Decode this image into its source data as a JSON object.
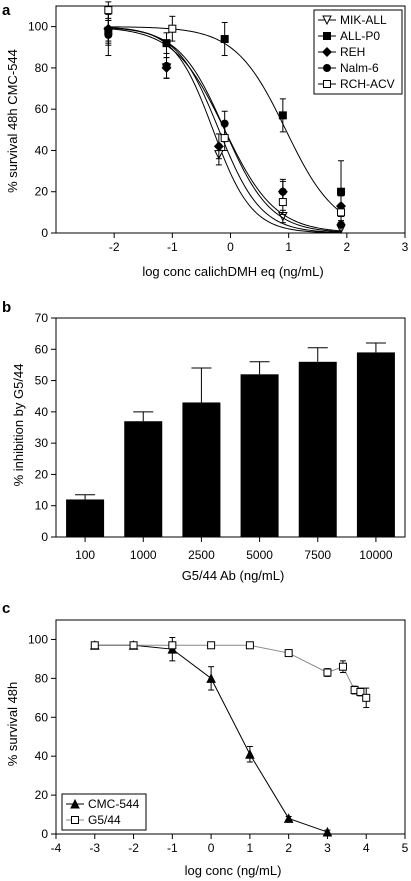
{
  "chart_data": [
    {
      "panel": "a",
      "type": "line",
      "title": "",
      "xlabel": "log conc calichDMH eq (ng/mL)",
      "ylabel": "% survival 48h CMC-544",
      "xlim": [
        -3,
        3
      ],
      "ylim": [
        0,
        110
      ],
      "xticks": [
        "-2",
        "-1",
        "0",
        "1",
        "2",
        "3"
      ],
      "yticks": [
        "0",
        "20",
        "40",
        "60",
        "80",
        "100"
      ],
      "legend_position": "top-right",
      "grid": false,
      "series": [
        {
          "name": "MIK-ALL",
          "marker": "triangle-down-open",
          "x": [
            -2.1,
            -1.1,
            -0.2,
            0.9,
            1.9
          ],
          "y": [
            97,
            80,
            38,
            8,
            2
          ],
          "err": [
            6,
            5,
            5,
            3,
            2
          ],
          "ic50": -0.3,
          "slope": 1.3
        },
        {
          "name": "ALL-P0",
          "marker": "square-filled",
          "x": [
            -2.1,
            -1.1,
            -0.1,
            0.9,
            1.9
          ],
          "y": [
            98,
            92,
            94,
            57,
            20
          ],
          "err": [
            5,
            5,
            8,
            8,
            15
          ],
          "ic50": 0.95,
          "slope": 1.0
        },
        {
          "name": "REH",
          "marker": "diamond-filled",
          "x": [
            -2.1,
            -1.1,
            -0.2,
            0.9,
            1.9
          ],
          "y": [
            99,
            80,
            42,
            20,
            13
          ],
          "err": [
            7,
            5,
            6,
            5,
            5
          ],
          "ic50": -0.1,
          "slope": 1.0
        },
        {
          "name": "Nalm-6",
          "marker": "circle-filled",
          "x": [
            -2.1,
            -1.1,
            -0.1,
            0.9,
            1.9
          ],
          "y": [
            96,
            81,
            53,
            20,
            4
          ],
          "err": [
            10,
            6,
            6,
            6,
            4
          ],
          "ic50": -0.1,
          "slope": 1.1
        },
        {
          "name": "RCH-ACV",
          "marker": "square-open",
          "x": [
            -2.1,
            -1.0,
            -0.1,
            0.9,
            1.9
          ],
          "y": [
            108,
            99,
            46,
            15,
            10
          ],
          "err": [
            4,
            6,
            6,
            6,
            4
          ],
          "ic50": -0.2,
          "slope": 1.2
        }
      ]
    },
    {
      "panel": "b",
      "type": "bar",
      "title": "",
      "xlabel": "G5/44 Ab (ng/mL)",
      "ylabel": "% inhibition by G5/44",
      "ylim": [
        0,
        70
      ],
      "yticks": [
        "0",
        "10",
        "20",
        "30",
        "40",
        "50",
        "60",
        "70"
      ],
      "categories": [
        "100",
        "1000",
        "2500",
        "5000",
        "7500",
        "10000"
      ],
      "values": [
        12,
        37,
        43,
        52,
        56,
        59
      ],
      "errors": [
        1.5,
        3,
        11,
        4,
        4.5,
        3
      ],
      "grid": false
    },
    {
      "panel": "c",
      "type": "line",
      "title": "",
      "xlabel": "log conc (ng/mL)",
      "ylabel": "% survival 48h",
      "xlim": [
        -4,
        5
      ],
      "ylim": [
        0,
        110
      ],
      "xticks": [
        "-4",
        "-3",
        "-2",
        "-1",
        "0",
        "1",
        "2",
        "3",
        "4",
        "5"
      ],
      "yticks": [
        "0",
        "20",
        "40",
        "60",
        "80",
        "100"
      ],
      "legend_position": "bottom-left",
      "grid": false,
      "series": [
        {
          "name": "CMC-544",
          "marker": "triangle-up-filled",
          "x": [
            -3,
            -2,
            -1,
            0,
            1,
            2,
            3
          ],
          "y": [
            97,
            97,
            95,
            80,
            41,
            8,
            1
          ],
          "err": [
            1,
            1,
            6,
            6,
            4,
            1,
            1
          ]
        },
        {
          "name": "G5/44",
          "marker": "square-open",
          "x": [
            -3,
            -2,
            -1,
            0,
            1,
            2,
            3,
            3.4,
            3.7,
            3.85,
            4
          ],
          "y": [
            97,
            97,
            97,
            97,
            97,
            93,
            83,
            86,
            74,
            73,
            70
          ],
          "err": [
            1,
            1,
            1,
            1,
            1,
            1,
            2,
            3,
            2,
            2,
            5
          ]
        }
      ]
    }
  ],
  "panels": {
    "a": {
      "letter": "a"
    },
    "b": {
      "letter": "b"
    },
    "c": {
      "letter": "c"
    }
  }
}
